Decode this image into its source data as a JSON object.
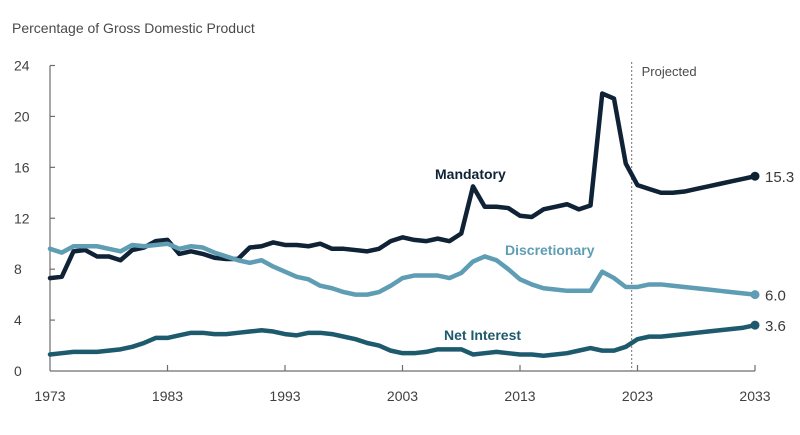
{
  "chart_data": {
    "type": "line",
    "title": "",
    "ylabel": "Percentage of Gross Domestic Product",
    "xlabel": "",
    "xlim": [
      1973,
      2033
    ],
    "ylim": [
      0,
      24
    ],
    "grid": false,
    "x_ticks": [
      1973,
      1983,
      1993,
      2003,
      2013,
      2023,
      2033
    ],
    "x_tick_labels": [
      "1973",
      "1983",
      "1993",
      "2003",
      "2013",
      "2023",
      "2033"
    ],
    "y_ticks": [
      0,
      4,
      8,
      12,
      16,
      20,
      24
    ],
    "y_tick_labels": [
      "0",
      "4",
      "8",
      "12",
      "16",
      "20",
      "24"
    ],
    "annotations": [
      {
        "text": "Projected",
        "x": 2022.5,
        "type": "vertical-dotted-line"
      }
    ],
    "x": [
      1973,
      1974,
      1975,
      1976,
      1977,
      1978,
      1979,
      1980,
      1981,
      1982,
      1983,
      1984,
      1985,
      1986,
      1987,
      1988,
      1989,
      1990,
      1991,
      1992,
      1993,
      1994,
      1995,
      1996,
      1997,
      1998,
      1999,
      2000,
      2001,
      2002,
      2003,
      2004,
      2005,
      2006,
      2007,
      2008,
      2009,
      2010,
      2011,
      2012,
      2013,
      2014,
      2015,
      2016,
      2017,
      2018,
      2019,
      2020,
      2021,
      2022,
      2023,
      2024,
      2025,
      2026,
      2027,
      2028,
      2029,
      2030,
      2031,
      2032,
      2033
    ],
    "series": [
      {
        "name": "Mandatory",
        "color": "#0f2236",
        "label_color": "#0f2236",
        "end_value_label": "15.3",
        "values": [
          7.3,
          7.4,
          9.4,
          9.5,
          9.0,
          9.0,
          8.7,
          9.5,
          9.7,
          10.2,
          10.3,
          9.2,
          9.4,
          9.2,
          8.9,
          8.8,
          8.8,
          9.7,
          9.8,
          10.1,
          9.9,
          9.9,
          9.8,
          10.0,
          9.6,
          9.6,
          9.5,
          9.4,
          9.6,
          10.2,
          10.5,
          10.3,
          10.2,
          10.4,
          10.2,
          10.8,
          14.5,
          12.9,
          12.9,
          12.8,
          12.2,
          12.1,
          12.7,
          12.9,
          13.1,
          12.7,
          13.0,
          21.8,
          21.4,
          16.3,
          14.6,
          14.3,
          14.0,
          14.0,
          14.1,
          14.3,
          14.5,
          14.7,
          14.9,
          15.1,
          15.3
        ]
      },
      {
        "name": "Discretionary",
        "color": "#5e9db3",
        "label_color": "#5e9db3",
        "end_value_label": "6.0",
        "values": [
          9.6,
          9.3,
          9.8,
          9.8,
          9.8,
          9.6,
          9.4,
          9.9,
          9.8,
          9.9,
          10.0,
          9.6,
          9.8,
          9.7,
          9.3,
          9.0,
          8.7,
          8.5,
          8.7,
          8.2,
          7.8,
          7.4,
          7.2,
          6.7,
          6.5,
          6.2,
          6.0,
          6.0,
          6.2,
          6.7,
          7.3,
          7.5,
          7.5,
          7.5,
          7.3,
          7.7,
          8.6,
          9.0,
          8.7,
          8.0,
          7.2,
          6.8,
          6.5,
          6.4,
          6.3,
          6.3,
          6.3,
          7.8,
          7.3,
          6.6,
          6.6,
          6.8,
          6.8,
          6.7,
          6.6,
          6.5,
          6.4,
          6.3,
          6.2,
          6.1,
          6.0
        ]
      },
      {
        "name": "Net Interest",
        "color": "#1e5a6e",
        "label_color": "#1e5a6e",
        "end_value_label": "3.6",
        "values": [
          1.3,
          1.4,
          1.5,
          1.5,
          1.5,
          1.6,
          1.7,
          1.9,
          2.2,
          2.6,
          2.6,
          2.8,
          3.0,
          3.0,
          2.9,
          2.9,
          3.0,
          3.1,
          3.2,
          3.1,
          2.9,
          2.8,
          3.0,
          3.0,
          2.9,
          2.7,
          2.5,
          2.2,
          2.0,
          1.6,
          1.4,
          1.4,
          1.5,
          1.7,
          1.7,
          1.7,
          1.3,
          1.4,
          1.5,
          1.4,
          1.3,
          1.3,
          1.2,
          1.3,
          1.4,
          1.6,
          1.8,
          1.6,
          1.6,
          1.9,
          2.5,
          2.7,
          2.7,
          2.8,
          2.9,
          3.0,
          3.1,
          3.2,
          3.3,
          3.4,
          3.6
        ]
      }
    ]
  }
}
